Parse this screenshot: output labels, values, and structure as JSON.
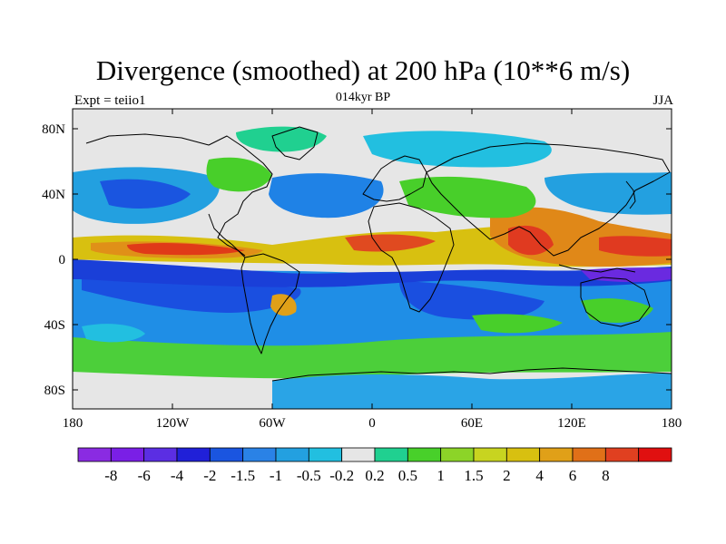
{
  "map": {
    "title": "Divergence (smoothed) at 200 hPa (10**6 m/s)",
    "left_label": "Expt = teiio1",
    "center_label": "014kyr BP",
    "right_label": "JJA",
    "lat_ticks": [
      "80N",
      "40N",
      "0",
      "40S",
      "80S"
    ],
    "lon_ticks": [
      "180",
      "120W",
      "60W",
      "0",
      "60E",
      "120E",
      "180"
    ],
    "colorbar": {
      "colors": [
        "#8a2be2",
        "#7a1fe6",
        "#5b2ee3",
        "#2020d8",
        "#1a55e0",
        "#2a82e6",
        "#23a0e0",
        "#22bfe0",
        "#e6e6e6",
        "#20d090",
        "#48d02a",
        "#8cd428",
        "#c8d420",
        "#d8c010",
        "#e0a018",
        "#e07018",
        "#e04020",
        "#e01010"
      ],
      "labels": [
        "-8",
        "-6",
        "-4",
        "-2",
        "-1.5",
        "-1",
        "-0.5",
        "-0.2",
        "0.2",
        "0.5",
        "1",
        "1.5",
        "2",
        "4",
        "6",
        "8"
      ]
    }
  }
}
